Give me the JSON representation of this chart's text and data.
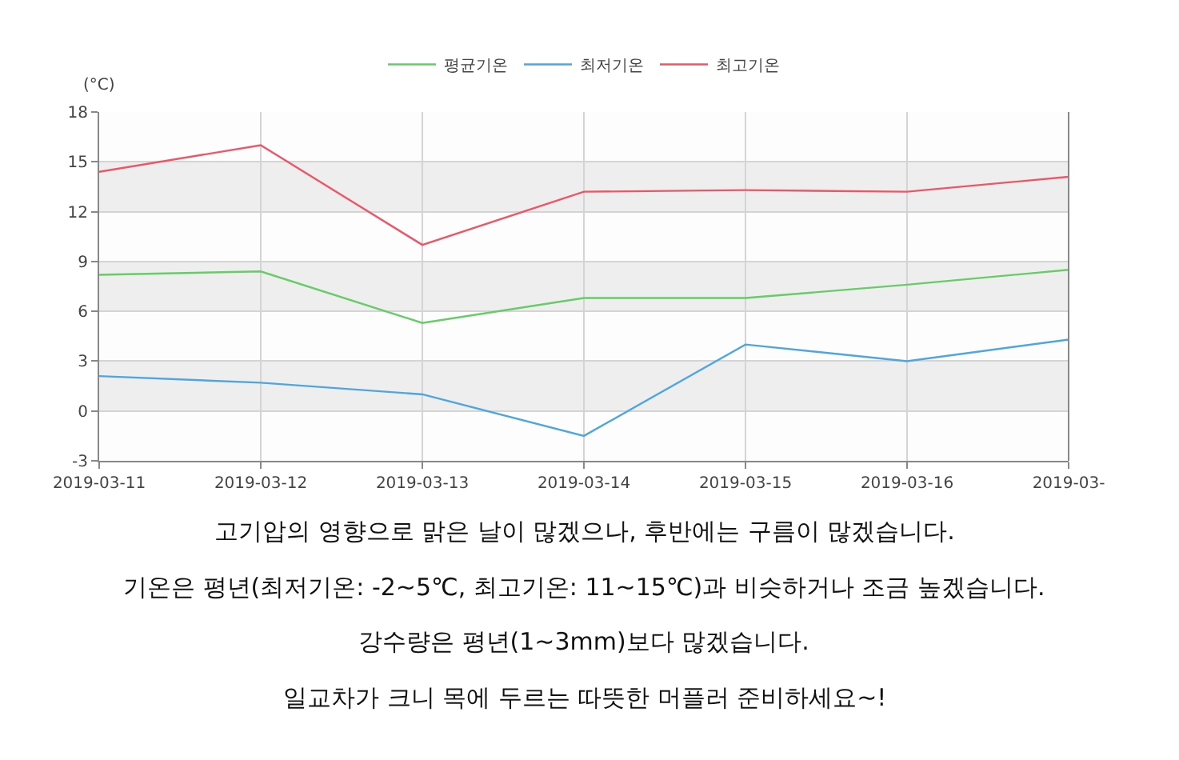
{
  "chart_data": {
    "type": "line",
    "ylabel": "(°C)",
    "categories": [
      "2019-03-11",
      "2019-03-12",
      "2019-03-13",
      "2019-03-14",
      "2019-03-15",
      "2019-03-16",
      "2019-03-"
    ],
    "series": [
      {
        "name": "평균기온",
        "color": "#66cc66",
        "values": [
          8.2,
          8.4,
          5.3,
          6.8,
          6.8,
          7.6,
          8.5
        ]
      },
      {
        "name": "최저기온",
        "color": "#4ea6e0",
        "values": [
          2.1,
          1.7,
          1.0,
          -1.5,
          4.0,
          3.0,
          4.3
        ]
      },
      {
        "name": "최고기온",
        "color": "#ee5566",
        "values": [
          14.4,
          16.0,
          10.0,
          13.2,
          13.3,
          13.2,
          14.1
        ]
      }
    ],
    "ylim": [
      -3,
      18
    ],
    "yticks": [
      -3,
      0,
      3,
      6,
      9,
      12,
      15,
      18
    ],
    "grid": true,
    "legend": "top",
    "bands": [
      {
        "axis": "y",
        "from": 12,
        "to": 15,
        "color": "#eeeeee"
      },
      {
        "axis": "y",
        "from": 6,
        "to": 9,
        "color": "#eeeeee"
      },
      {
        "axis": "y",
        "from": 0,
        "to": 3,
        "color": "#eeeeee"
      }
    ],
    "annotations": [
      "고기압의 영향으로 맑은 날이 많겠으나, 후반에는 구름이 많겠습니다.",
      "기온은 평년(최저기온: -2~5℃, 최고기온: 11~15℃)과 비슷하거나 조금 높겠습니다.",
      "강수량은 평년(1~3mm)보다 많겠습니다.",
      "일교차가 크니 목에 두르는 따뜻한 머플러 준비하세요~!"
    ]
  }
}
